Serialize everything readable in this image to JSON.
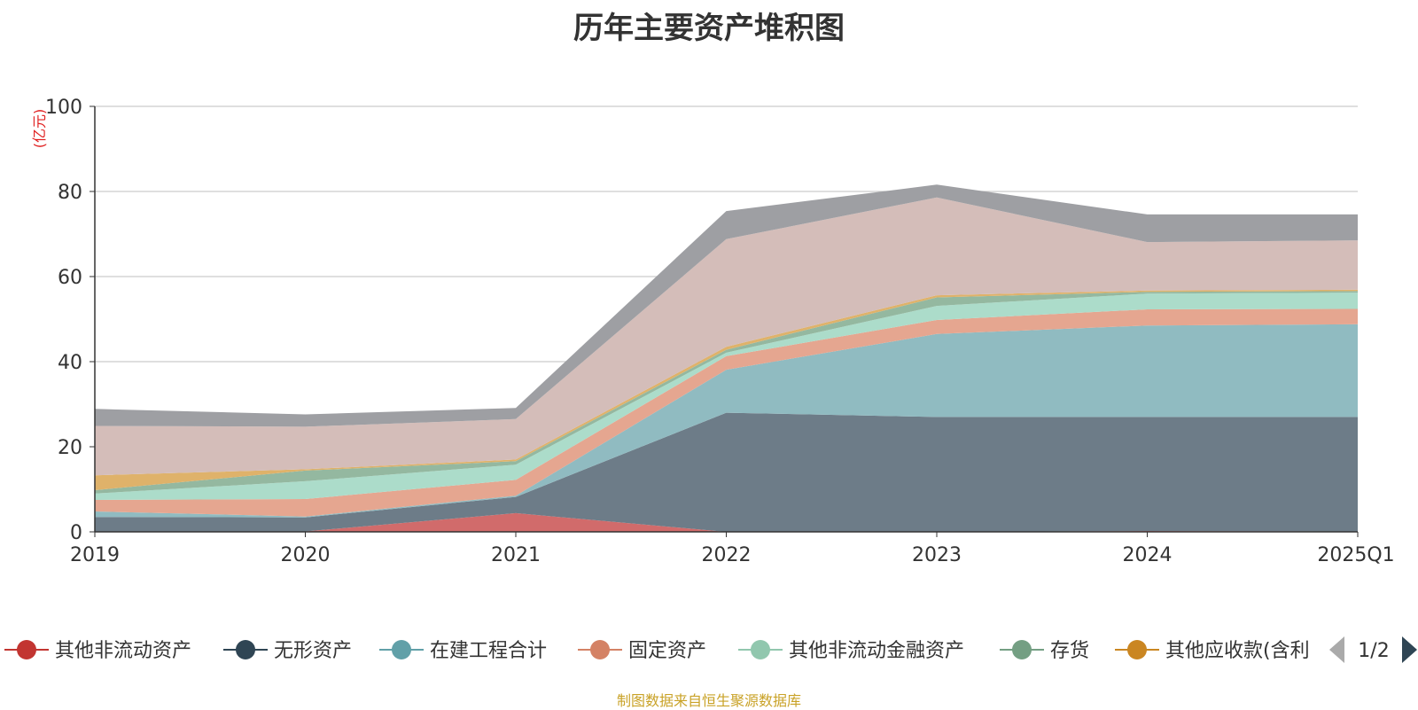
{
  "chart_data": {
    "type": "area",
    "stacked": true,
    "title": "历年主要资产堆积图",
    "y_unit": "(亿元)",
    "categories": [
      "2019",
      "2020",
      "2021",
      "2022",
      "2023",
      "2024",
      "2025Q1"
    ],
    "ylim": [
      0,
      100
    ],
    "yticks": [
      0,
      20,
      40,
      60,
      80,
      100
    ],
    "grid": true,
    "series": [
      {
        "name": "其他非流动资产",
        "color": "#d16b6b",
        "values": [
          0.0,
          0.1,
          4.4,
          0.0,
          0.0,
          0.2,
          0.1
        ]
      },
      {
        "name": "无形资产",
        "color": "#6d7c88",
        "values": [
          3.5,
          3.3,
          3.8,
          28.0,
          27.0,
          26.8,
          26.9
        ]
      },
      {
        "name": "在建工程合计",
        "color": "#90bbc1",
        "values": [
          1.3,
          0.2,
          0.3,
          10.1,
          19.5,
          21.5,
          21.8
        ]
      },
      {
        "name": "固定资产",
        "color": "#e5a690",
        "values": [
          2.7,
          4.1,
          3.7,
          3.2,
          3.3,
          3.8,
          3.6
        ]
      },
      {
        "name": "其他非流动金融资产",
        "color": "#acdcca",
        "values": [
          1.5,
          4.2,
          3.6,
          0.8,
          3.3,
          3.7,
          3.8
        ]
      },
      {
        "name": "存货",
        "color": "#94b8a0",
        "values": [
          0.8,
          2.5,
          0.8,
          0.7,
          2.0,
          0.4,
          0.4
        ]
      },
      {
        "name": "其他应收款(含利息和股利)",
        "color": "#dfb26a",
        "values": [
          3.5,
          0.3,
          0.4,
          0.7,
          0.5,
          0.3,
          0.3
        ]
      },
      {
        "name": "",
        "color": "#d4bdb9",
        "values": [
          11.6,
          10.0,
          9.5,
          25.3,
          23.0,
          11.4,
          11.6
        ]
      },
      {
        "name": "",
        "color": "#9e9fa3",
        "values": [
          4.0,
          2.9,
          2.6,
          6.6,
          3.0,
          6.5,
          6.1
        ]
      }
    ],
    "legend": {
      "position": "bottom",
      "page": "1/2",
      "items": [
        {
          "label": "其他非流动资产",
          "color": "#c23531"
        },
        {
          "label": "无形资产",
          "color": "#2f4554"
        },
        {
          "label": "在建工程合计",
          "color": "#61a0a8"
        },
        {
          "label": "固定资产",
          "color": "#d48265"
        },
        {
          "label": "其他非流动金融资产",
          "color": "#91c7ae"
        },
        {
          "label": "存货",
          "color": "#749f83"
        },
        {
          "label": "其他应收款(含利",
          "color": "#ca8622"
        }
      ]
    }
  },
  "footer": {
    "source": "制图数据来自恒生聚源数据库"
  }
}
